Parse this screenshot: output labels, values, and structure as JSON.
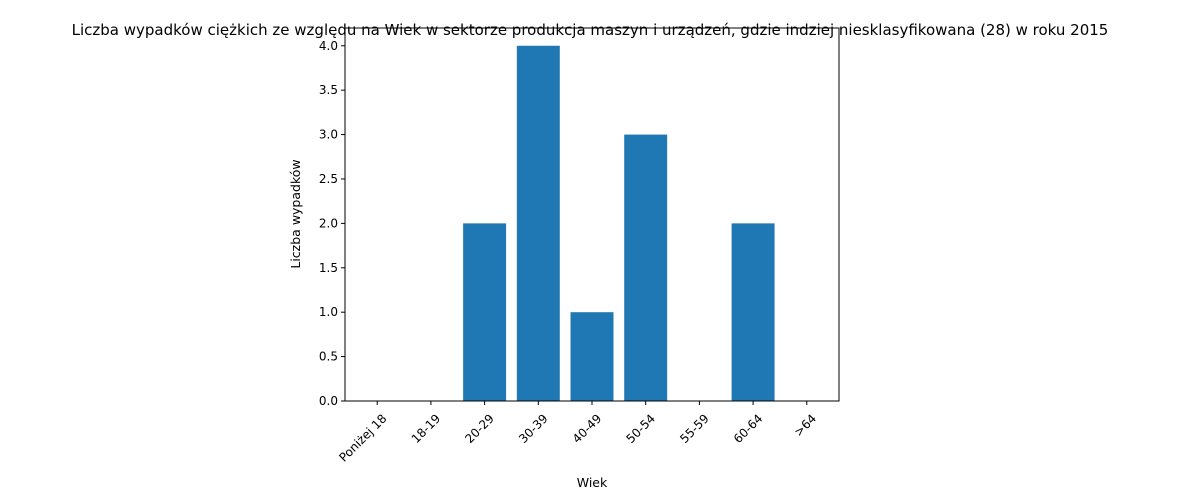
{
  "chart_data": {
    "type": "bar",
    "title": "Liczba wypadków ciężkich ze względu na Wiek w sektorze produkcja maszyn i urządzeń, gdzie indziej niesklasyfikowana (28)  w roku 2015",
    "xlabel": "Wiek",
    "ylabel": "Liczba wypadków",
    "categories": [
      "Poniżej 18",
      "18-19",
      "20-29",
      "30-39",
      "40-49",
      "50-54",
      "55-59",
      "60-64",
      ">64"
    ],
    "values": [
      0,
      0,
      2,
      4,
      1,
      3,
      0,
      2,
      0
    ],
    "ylim": [
      0,
      4.2
    ],
    "yticks": [
      "0.0",
      "0.5",
      "1.0",
      "1.5",
      "2.0",
      "2.5",
      "3.0",
      "3.5",
      "4.0"
    ],
    "bar_color": "#1f77b4",
    "grid": false,
    "legend": false
  }
}
